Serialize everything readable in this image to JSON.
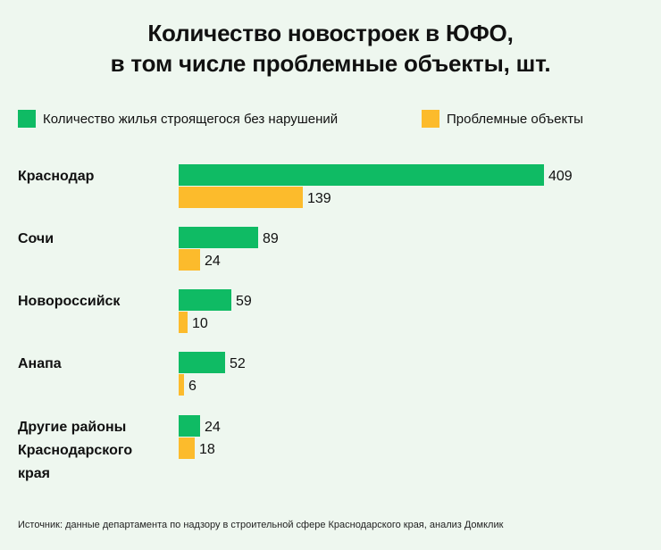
{
  "title_line1": "Количество новостроек в ЮФО,",
  "title_line2": "в том числе проблемные объекты, шт.",
  "legend": {
    "series1_label": "Количество жилья строящегося без нарушений",
    "series2_label": "Проблемные объекты"
  },
  "colors": {
    "background": "#eef7ef",
    "series1": "#0fbb64",
    "series2": "#fcbb2c",
    "text": "#111111"
  },
  "chart_data": {
    "type": "bar",
    "orientation": "horizontal",
    "categories": [
      [
        "Краснодар"
      ],
      [
        "Сочи"
      ],
      [
        "Новороссийск"
      ],
      [
        "Анапа"
      ],
      [
        "Другие районы",
        "Краснодарского",
        "края"
      ]
    ],
    "series": [
      {
        "name": "Количество жилья строящегося без нарушений",
        "values": [
          409,
          89,
          59,
          52,
          24
        ]
      },
      {
        "name": "Проблемные объекты",
        "values": [
          139,
          24,
          10,
          6,
          18
        ]
      }
    ],
    "data_labels": true,
    "grid": false,
    "legend_position": "top"
  },
  "footer": "Источник: данные департамента по надзору в строительной сфере Краснодарского края, анализ Домклик"
}
